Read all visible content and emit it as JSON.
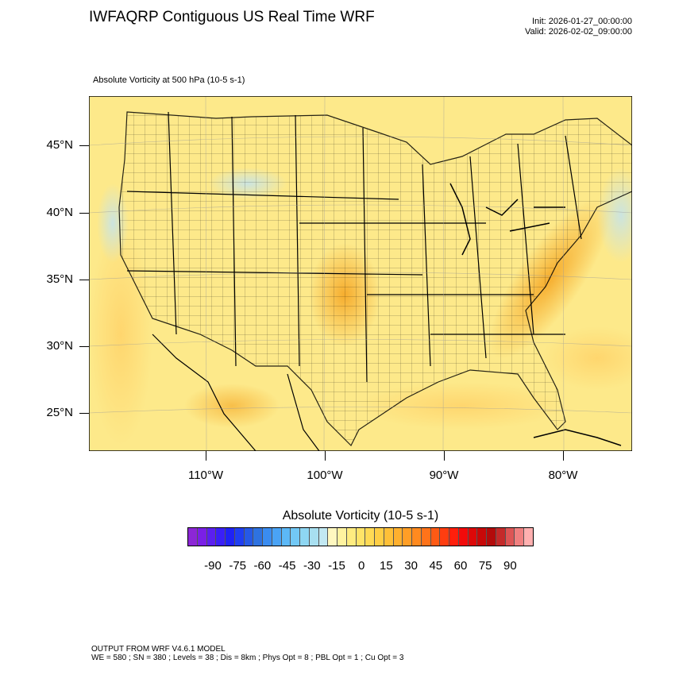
{
  "header": {
    "title": "IWFAQRP Contiguous US Real Time WRF",
    "init": "Init: 2026-01-27_00:00:00",
    "valid": "Valid: 2026-02-02_09:00:00"
  },
  "map": {
    "subtitle": "Absolute Vorticity at 500 hPa   (10-5 s-1)",
    "lat_labels": [
      "45°N",
      "40°N",
      "35°N",
      "30°N",
      "25°N"
    ],
    "lon_labels": [
      "110°W",
      "100°W",
      "90°W",
      "80°W"
    ],
    "background_color": "#fde98a"
  },
  "colorbar": {
    "title": "Absolute Vorticity  (10-5 s-1)",
    "labels": [
      "-90",
      "-75",
      "-60",
      "-45",
      "-30",
      "-15",
      "0",
      "15",
      "30",
      "45",
      "60",
      "75",
      "90"
    ],
    "colors": [
      "#8c26d6",
      "#7a1fe6",
      "#5b1ff0",
      "#3a1ff7",
      "#1f22f5",
      "#1f3ef2",
      "#2659e6",
      "#2e72e0",
      "#3a8cf0",
      "#4aa3f5",
      "#5cb8f7",
      "#72c8f5",
      "#8ed6f2",
      "#a8dff0",
      "#c2e8f2",
      "#fff8c0",
      "#fff3a0",
      "#ffec80",
      "#ffe468",
      "#ffda55",
      "#ffce45",
      "#ffc038",
      "#ffb02e",
      "#ff9e26",
      "#ff8a1f",
      "#ff731a",
      "#ff5a14",
      "#ff3d10",
      "#ff1f0c",
      "#f20a0a",
      "#dd0808",
      "#c80808",
      "#b30b0b",
      "#c42a2a",
      "#dd5555",
      "#f08080",
      "#ffb0b0"
    ]
  },
  "footer": {
    "line1": "OUTPUT FROM WRF V4.6.1 MODEL",
    "line2": "WE = 580 ; SN = 380 ; Levels = 38 ; Dis = 8km ; Phys Opt = 8 ; PBL Opt = 1 ; Cu Opt = 3"
  }
}
